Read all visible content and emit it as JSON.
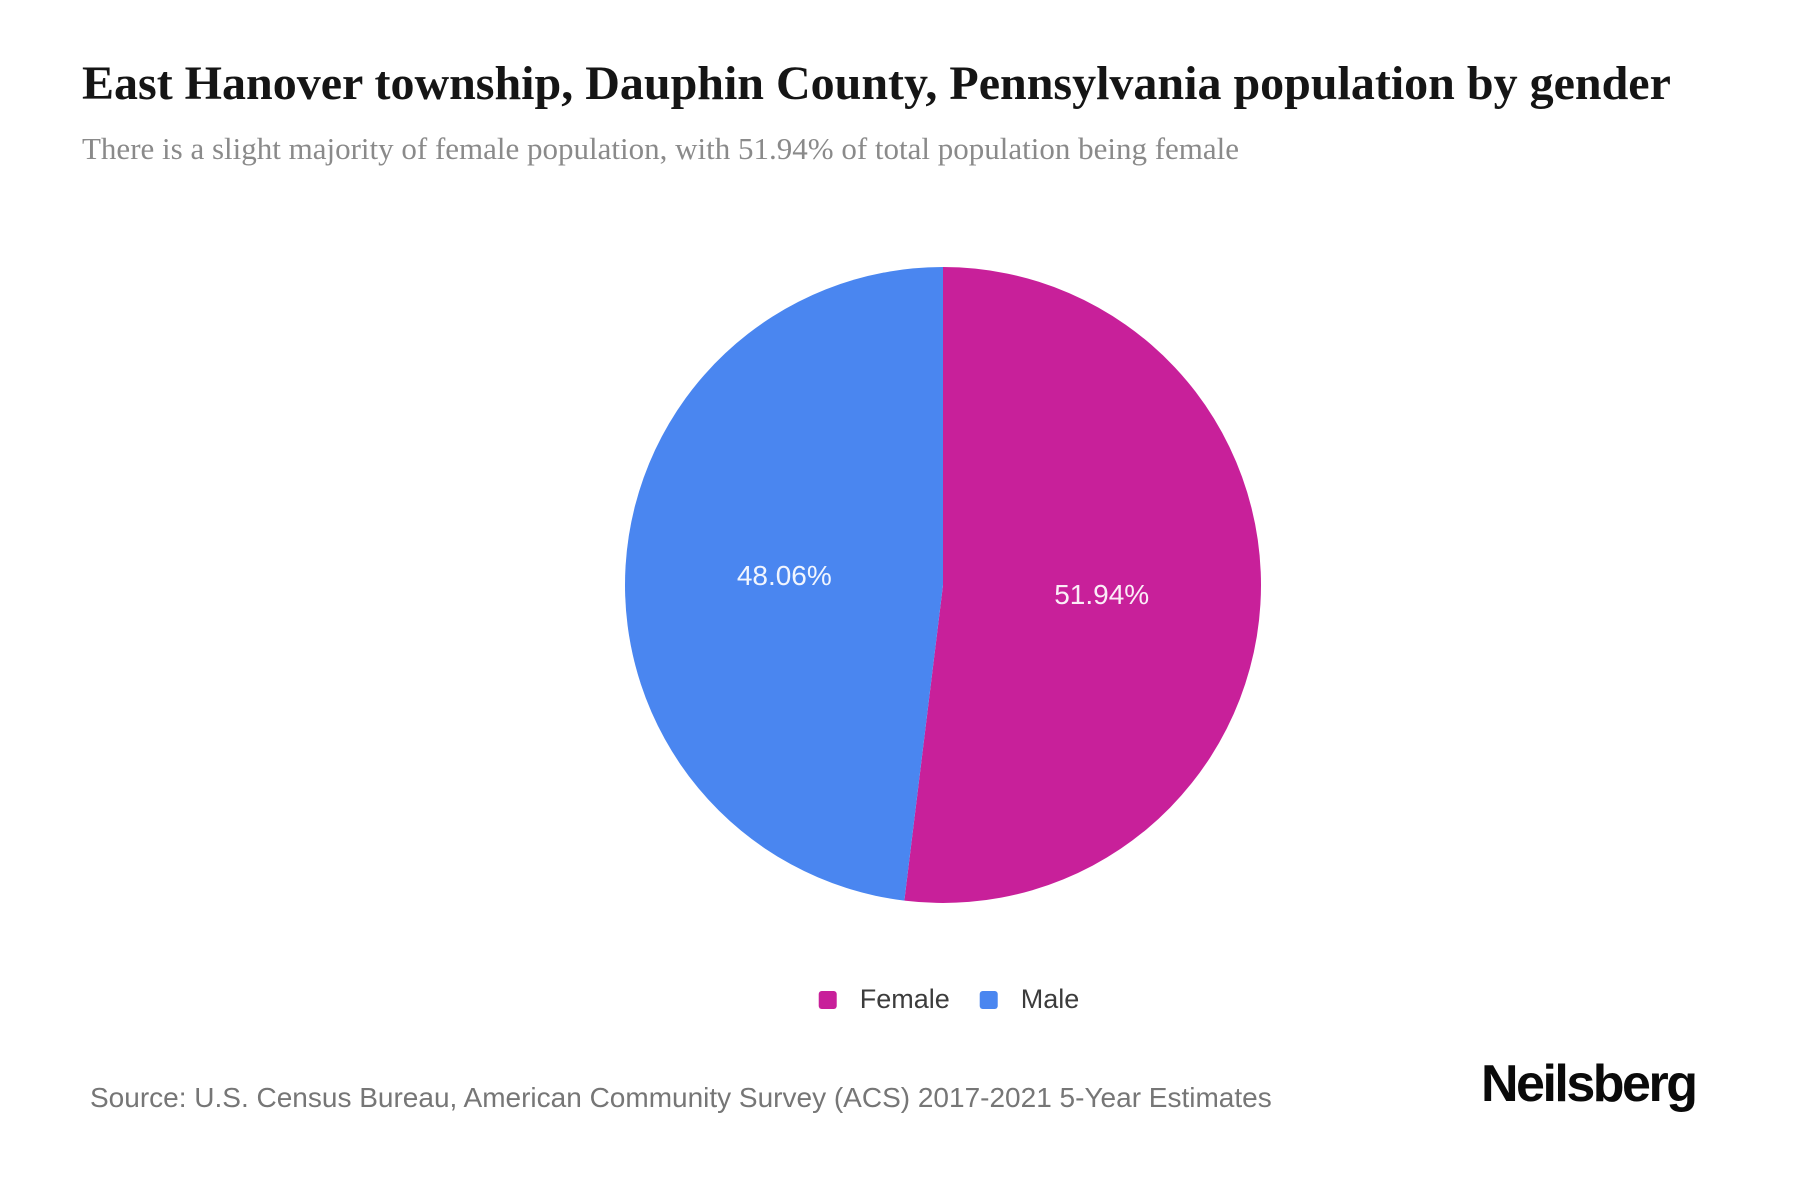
{
  "header": {
    "title": "East Hanover township, Dauphin County, Pennsylvania population by gender",
    "subtitle": "There is a slight majority of female population, with 51.94% of total population being female"
  },
  "chart_data": {
    "type": "pie",
    "title": "East Hanover township, Dauphin County, Pennsylvania population by gender",
    "unit": "percent of total population",
    "start_angle": "12 o'clock, clockwise",
    "legend_position": "bottom",
    "labels_position": "inside",
    "slices": [
      {
        "label": "Female",
        "value": 51.94,
        "display": "51.94%",
        "color": "#c8209a"
      },
      {
        "label": "Male",
        "value": 48.06,
        "display": "48.06%",
        "color": "#4a86f0"
      }
    ]
  },
  "footer": {
    "source": "Source: U.S. Census Bureau, American Community Survey (ACS) 2017-2021 5-Year Estimates",
    "brand": "Neilsberg"
  }
}
